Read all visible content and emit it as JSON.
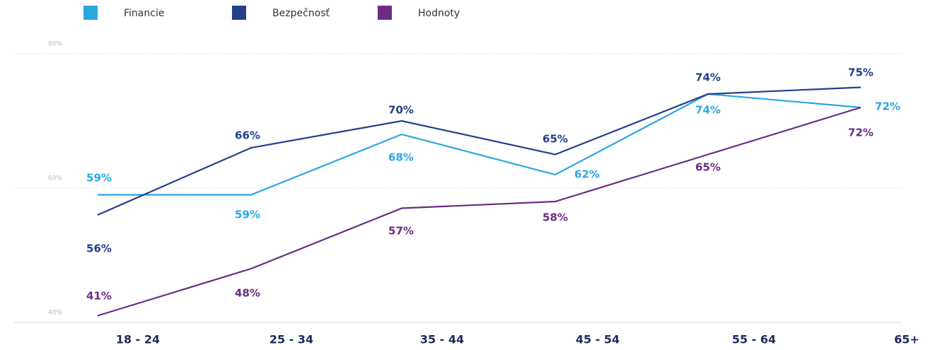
{
  "chart_data": {
    "type": "line",
    "categories": [
      "18 - 24",
      "25 - 34",
      "35 - 44",
      "45 - 54",
      "55 - 64",
      "65+"
    ],
    "series": [
      {
        "name": "Financie",
        "color": "#29a8e0",
        "values": [
          59,
          59,
          68,
          62,
          74,
          72
        ],
        "value_labels": [
          "59%",
          "59%",
          "68%",
          "62%",
          "74%",
          "72%"
        ]
      },
      {
        "name": "Bezpečnosť",
        "color": "#233f8c",
        "values": [
          56,
          66,
          70,
          65,
          74,
          75
        ],
        "value_labels": [
          "56%",
          "66%",
          "70%",
          "65%",
          "74%",
          "75%"
        ]
      },
      {
        "name": "Hodnoty",
        "color": "#6a2c84",
        "values": [
          41,
          48,
          57,
          58,
          65,
          72
        ],
        "value_labels": [
          "41%",
          "48%",
          "57%",
          "58%",
          "65%",
          "72%"
        ]
      }
    ],
    "ylim": [
      40,
      80
    ],
    "yticks": [
      {
        "value": 40,
        "label": "40%"
      },
      {
        "value": 60,
        "label": "60%"
      },
      {
        "value": 80,
        "label": "80%"
      }
    ],
    "grid": true
  }
}
